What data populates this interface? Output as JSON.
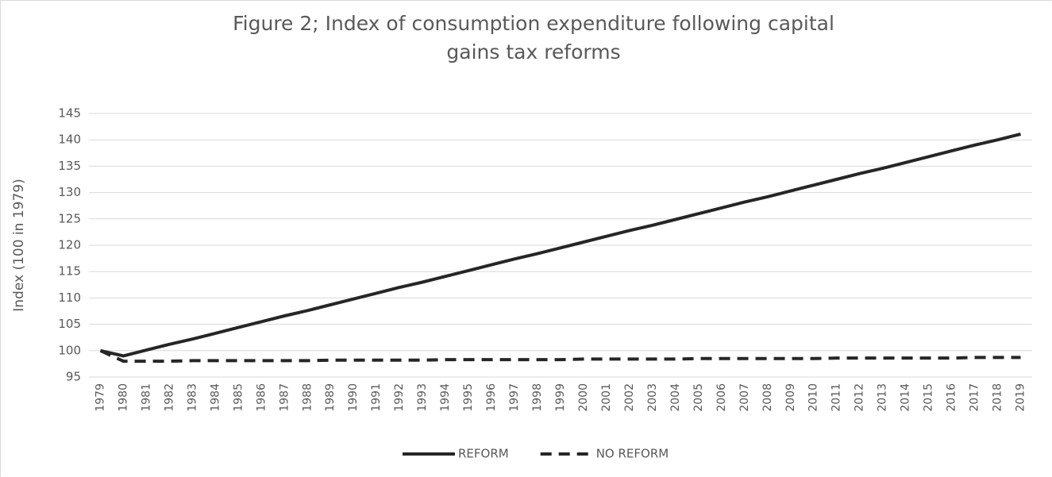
{
  "chart_data": {
    "type": "line",
    "title": "Figure 2; Index of consumption expenditure following capital gains tax reforms",
    "y_label": "Index (100 in 1979)",
    "categories": [
      "1979",
      "1980",
      "1981",
      "1982",
      "1983",
      "1984",
      "1985",
      "1986",
      "1987",
      "1988",
      "1989",
      "1990",
      "1991",
      "1992",
      "1993",
      "1994",
      "1995",
      "1996",
      "1997",
      "1998",
      "1999",
      "2000",
      "2001",
      "2002",
      "2003",
      "2004",
      "2005",
      "2006",
      "2007",
      "2008",
      "2009",
      "2010",
      "2011",
      "2012",
      "2013",
      "2014",
      "2015",
      "2016",
      "2017",
      "2018",
      "2019"
    ],
    "series": [
      {
        "name": "REFORM",
        "color": "#262626",
        "dashed": false,
        "values": [
          100,
          99,
          100.1,
          101.2,
          102.2,
          103.3,
          104.4,
          105.5,
          106.6,
          107.6,
          108.7,
          109.8,
          110.9,
          112.0,
          113.0,
          114.1,
          115.2,
          116.3,
          117.4,
          118.4,
          119.5,
          120.6,
          121.7,
          122.8,
          123.8,
          124.9,
          126.0,
          127.1,
          128.2,
          129.2,
          130.3,
          131.4,
          132.5,
          133.6,
          134.6,
          135.7,
          136.8,
          137.9,
          139.0,
          140.0,
          141.1
        ]
      },
      {
        "name": "NO REFORM",
        "color": "#262626",
        "dashed": true,
        "values": [
          100,
          98.0,
          98.0,
          98.0,
          98.1,
          98.1,
          98.1,
          98.1,
          98.1,
          98.1,
          98.2,
          98.2,
          98.2,
          98.2,
          98.2,
          98.3,
          98.3,
          98.3,
          98.3,
          98.3,
          98.3,
          98.4,
          98.4,
          98.4,
          98.4,
          98.4,
          98.5,
          98.5,
          98.5,
          98.5,
          98.5,
          98.5,
          98.6,
          98.6,
          98.6,
          98.6,
          98.6,
          98.6,
          98.7,
          98.7,
          98.7
        ]
      }
    ],
    "ylim": [
      95,
      145
    ],
    "yticks": [
      95,
      100,
      105,
      110,
      115,
      120,
      125,
      130,
      135,
      140,
      145
    ],
    "grid": true,
    "legend": "bottom"
  }
}
